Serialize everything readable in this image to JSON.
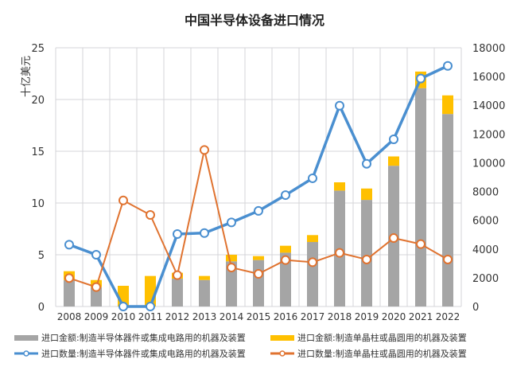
{
  "chart_data": {
    "type": "bar+line",
    "title": "中国半导体设备进口情况",
    "ylabel_left": "十亿美元",
    "ylim_left": [
      0,
      25
    ],
    "ylim_right": [
      0,
      18000
    ],
    "yticks_left": [
      "0",
      "5",
      "10",
      "15",
      "20",
      "25"
    ],
    "yticks_right": [
      "0",
      "2000",
      "4000",
      "6000",
      "8000",
      "10000",
      "12000",
      "14000",
      "16000",
      "18000"
    ],
    "grid": true,
    "legend_position": "bottom",
    "categories": [
      "2008",
      "2009",
      "2010",
      "2011",
      "2012",
      "2013",
      "2014",
      "2015",
      "2016",
      "2017",
      "2018",
      "2019",
      "2020",
      "2021",
      "2022"
    ],
    "series": [
      {
        "name": "进口金额:制造半导体器件或集成电路用的机器及装置",
        "type": "stacked-bar",
        "axis": "left",
        "color": "#a5a5a5",
        "values": [
          2.56,
          1.87,
          0,
          0,
          2.69,
          2.56,
          4.36,
          4.49,
          5.2,
          6.23,
          11.2,
          10.3,
          13.6,
          21.1,
          18.6
        ]
      },
      {
        "name": "进口金额:制造单晶柱或晶圆用的机器及装置",
        "type": "stacked-bar",
        "axis": "left",
        "color": "#ffc000",
        "values": [
          0.85,
          0.69,
          2.0,
          2.95,
          0.57,
          0.39,
          0.64,
          0.38,
          0.67,
          0.67,
          0.8,
          1.1,
          0.9,
          1.6,
          1.8
        ]
      },
      {
        "name": "进口数量:制造半导体器件或集成电路用的机器及装置",
        "type": "line",
        "axis": "right",
        "color": "#4a8fd0",
        "values": [
          4300,
          3600,
          0,
          0,
          5040,
          5110,
          5850,
          6650,
          7750,
          8920,
          13970,
          9930,
          11630,
          15860,
          16740
        ]
      },
      {
        "name": "进口数量:制造单晶柱或晶圆用的机器及装置",
        "type": "line",
        "axis": "right",
        "color": "#e07330",
        "values": [
          1975,
          1350,
          7380,
          6370,
          2180,
          10890,
          2710,
          2270,
          3230,
          3080,
          3730,
          3270,
          4760,
          4340,
          3270
        ]
      }
    ]
  }
}
